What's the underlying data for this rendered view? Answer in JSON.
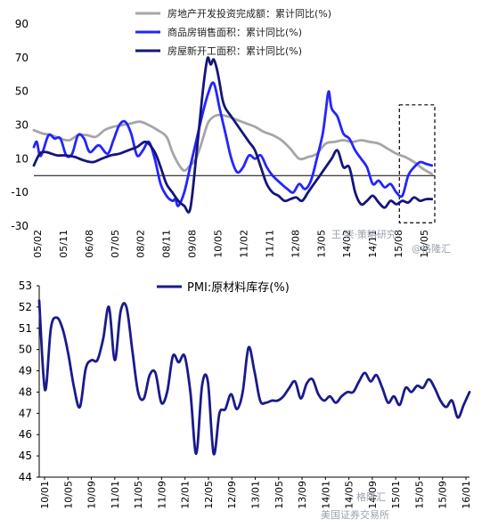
{
  "colors": {
    "grey_series": "#a6a6a6",
    "blue_series": "#2424ff",
    "navy_series": "#15157a",
    "pmi_series": "#1a1a8c",
    "axis": "#000000",
    "dashed_box": "#000000"
  },
  "watermark": {
    "top_line1": "王·崇·策略研究",
    "top_line2": "@格隆汇",
    "bottom_line1": "格隆汇",
    "bottom_line2": "美国证券交易所"
  },
  "chart_data": [
    {
      "type": "line",
      "title": "",
      "xlabel": "",
      "ylabel": "",
      "ylim": [
        -30,
        90
      ],
      "yticks": [
        "90",
        "70",
        "50",
        "30",
        "10",
        "-10",
        "-30"
      ],
      "xticks": [
        "05/02",
        "05/11",
        "06/08",
        "07/05",
        "08/02",
        "08/11",
        "09/08",
        "10/05",
        "11/02",
        "11/11",
        "12/08",
        "13/05",
        "14/02",
        "14/11",
        "15/08",
        "16/05"
      ],
      "legend": {
        "position": "top",
        "entries": [
          "房地产开发投资完成额：累计同比(%)",
          "商品房销售面积：累计同比(%)",
          "房屋新开工面积：累计同比(%)"
        ]
      },
      "annotation": {
        "type": "dashed-box",
        "x_start": 124,
        "x_end": 136,
        "y_top": 42,
        "y_bottom": -28
      },
      "series": [
        {
          "name": "房地产开发投资完成额：累计同比(%)",
          "color": "grey",
          "x": [
            0,
            3,
            6,
            9,
            12,
            15,
            18,
            21,
            24,
            27,
            30,
            33,
            36,
            39,
            42,
            45,
            47,
            49,
            51,
            53,
            55,
            57,
            59,
            61,
            63,
            66,
            69,
            72,
            75,
            78,
            81,
            84,
            87,
            90,
            93,
            96,
            99,
            102,
            105,
            108,
            111,
            114,
            117,
            120,
            123,
            126,
            129,
            132,
            135
          ],
          "values": [
            27,
            25,
            24,
            22,
            21,
            24,
            24,
            23,
            27,
            29,
            30,
            31,
            32,
            30,
            27,
            23,
            14,
            7,
            3,
            6,
            10,
            20,
            31,
            35,
            36,
            35,
            33,
            31,
            29,
            26,
            24,
            21,
            16,
            10,
            11,
            13,
            19,
            20,
            21,
            20,
            21,
            20,
            19,
            16,
            13,
            11,
            8,
            4,
            1
          ]
        },
        {
          "name": "商品房销售面积：累计同比(%)",
          "color": "blue",
          "x": [
            0,
            1,
            2,
            3,
            5,
            7,
            9,
            11,
            13,
            15,
            17,
            19,
            22,
            25,
            27,
            29,
            31,
            33,
            35,
            37,
            39,
            41,
            43,
            45,
            47,
            48,
            49,
            51,
            53,
            55,
            57,
            59,
            61,
            63,
            65,
            67,
            69,
            71,
            73,
            75,
            77,
            79,
            81,
            84,
            86,
            88,
            90,
            92,
            94,
            96,
            98,
            99,
            100,
            101,
            103,
            105,
            107,
            109,
            111,
            113,
            115,
            117,
            119,
            121,
            123,
            125,
            127,
            129,
            131,
            133,
            135
          ],
          "values": [
            17,
            20,
            12,
            14,
            24,
            22,
            22,
            12,
            13,
            24,
            22,
            14,
            18,
            13,
            21,
            30,
            32,
            25,
            12,
            15,
            20,
            10,
            -5,
            -12,
            -15,
            -14,
            -18,
            -10,
            5,
            20,
            35,
            48,
            55,
            40,
            25,
            10,
            2,
            5,
            12,
            10,
            12,
            5,
            0,
            -5,
            -8,
            -10,
            -5,
            -8,
            -3,
            10,
            25,
            38,
            50,
            40,
            35,
            25,
            22,
            15,
            10,
            5,
            -5,
            -3,
            -7,
            -5,
            -10,
            -12,
            0,
            5,
            8,
            7,
            6
          ]
        },
        {
          "name": "房屋新开工面积：累计同比(%)",
          "color": "navy",
          "x": [
            0,
            2,
            4,
            6,
            8,
            11,
            14,
            17,
            20,
            23,
            26,
            29,
            32,
            35,
            38,
            41,
            43,
            45,
            47,
            49,
            51,
            53,
            55,
            57,
            58,
            59,
            60,
            61,
            62,
            63,
            64,
            65,
            67,
            69,
            71,
            73,
            75,
            77,
            79,
            81,
            83,
            85,
            87,
            89,
            91,
            93,
            95,
            97,
            99,
            101,
            103,
            105,
            107,
            109,
            111,
            113,
            115,
            117,
            119,
            121,
            123,
            125,
            127,
            129,
            131,
            133,
            135
          ],
          "values": [
            6,
            13,
            14,
            13,
            12,
            12,
            11,
            9,
            8,
            10,
            12,
            13,
            15,
            17,
            20,
            14,
            5,
            -5,
            -10,
            -15,
            -18,
            -20,
            10,
            45,
            60,
            70,
            66,
            69,
            64,
            55,
            45,
            40,
            35,
            30,
            25,
            20,
            15,
            5,
            -5,
            -10,
            -12,
            -15,
            -14,
            -13,
            -15,
            -10,
            -5,
            0,
            5,
            10,
            15,
            5,
            5,
            -10,
            -17,
            -15,
            -12,
            -16,
            -19,
            -15,
            -17,
            -15,
            -16,
            -13,
            -15,
            -14,
            -14
          ]
        }
      ]
    },
    {
      "type": "line",
      "title": "",
      "xlabel": "",
      "ylabel": "",
      "ylim": [
        44,
        53
      ],
      "yticks": [
        "53",
        "52",
        "51",
        "50",
        "49",
        "48",
        "47",
        "46",
        "45",
        "44"
      ],
      "xticks": [
        "10/01",
        "10/05",
        "10/09",
        "11/01",
        "11/05",
        "11/09",
        "12/01",
        "12/05",
        "12/09",
        "13/01",
        "13/05",
        "13/09",
        "14/01",
        "14/05",
        "14/09",
        "15/01",
        "15/05",
        "15/09",
        "16/01"
      ],
      "legend": {
        "position": "top",
        "entries": [
          "PMI:原材料库存(%)"
        ]
      },
      "series": [
        {
          "name": "PMI:原材料库存(%)",
          "x": [
            0,
            1,
            2,
            3,
            4,
            5,
            6,
            7,
            8,
            9,
            10,
            11,
            12,
            13,
            14,
            15,
            16,
            17,
            18,
            19,
            20,
            21,
            22,
            23,
            24,
            25,
            26,
            27,
            28,
            29,
            30,
            31,
            32,
            33,
            34,
            35,
            36,
            37,
            38,
            39,
            40,
            41,
            42,
            43,
            44,
            45,
            46,
            47,
            48,
            49,
            50,
            51,
            52,
            53,
            54,
            55,
            56,
            57,
            58,
            59,
            60,
            61,
            62,
            63,
            64,
            65,
            66,
            67,
            68,
            69,
            70,
            71,
            72,
            73,
            74
          ],
          "values": [
            52.3,
            48.1,
            51.0,
            51.5,
            51.0,
            49.8,
            48.2,
            47.3,
            49.1,
            49.5,
            49.5,
            50.5,
            52.0,
            49.5,
            51.8,
            52.0,
            50.0,
            48.0,
            47.7,
            48.8,
            48.9,
            47.5,
            48.0,
            49.7,
            49.4,
            49.7,
            48.0,
            45.1,
            48.3,
            48.5,
            45.1,
            47.0,
            47.2,
            47.9,
            47.2,
            48.0,
            50.1,
            49.0,
            47.6,
            47.5,
            47.6,
            47.6,
            47.8,
            48.2,
            48.5,
            47.7,
            48.4,
            48.6,
            47.9,
            47.6,
            47.8,
            47.5,
            47.8,
            48.0,
            48.0,
            48.5,
            48.9,
            48.5,
            48.8,
            48.2,
            47.5,
            47.8,
            47.4,
            48.2,
            48.0,
            48.3,
            48.2,
            48.6,
            48.2,
            47.6,
            47.3,
            47.6,
            46.8,
            47.4,
            48.0
          ]
        }
      ]
    }
  ]
}
